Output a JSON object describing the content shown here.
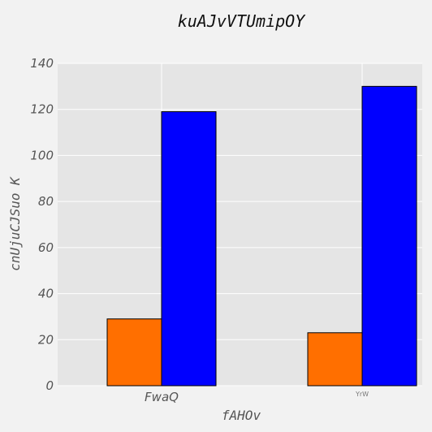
{
  "chart_data": {
    "type": "bar",
    "title": "kuAJvVTUmipOY",
    "xlabel": "fAHOv",
    "ylabel": "cnUjuCJSuo K",
    "categories": [
      "FwaQ",
      "YrW"
    ],
    "series": [
      {
        "values": [
          29,
          23
        ],
        "color": "#ff6f00"
      },
      {
        "values": [
          119,
          130
        ],
        "color": "#0000ff"
      }
    ],
    "ylim": [
      0,
      140
    ],
    "yticks": [
      0,
      20,
      40,
      60,
      80,
      100,
      120,
      140
    ],
    "grid": true,
    "colors": {
      "plot_background": "#e5e5e5",
      "figure_background": "#f2f2f2",
      "grid": "#ffffff",
      "bar_edge": "#000000"
    }
  }
}
